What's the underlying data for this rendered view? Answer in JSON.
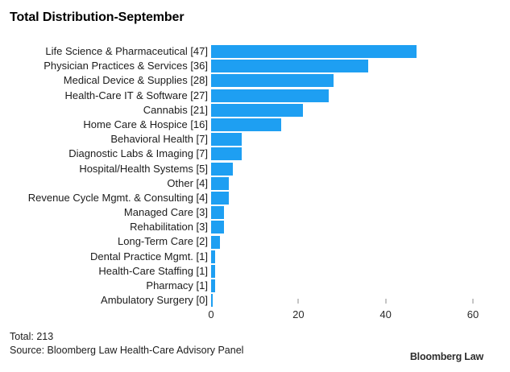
{
  "title": "Total Distribution-September",
  "chart_data": {
    "type": "bar",
    "orientation": "horizontal",
    "title": "Total Distribution-September",
    "categories": [
      "Life Science & Pharmaceutical",
      "Physician Practices & Services",
      "Medical Device & Supplies",
      "Health-Care IT & Software",
      "Cannabis",
      "Home Care & Hospice",
      "Behavioral Health",
      "Diagnostic Labs & Imaging",
      "Hospital/Health Systems",
      "Other",
      "Revenue Cycle Mgmt. & Consulting",
      "Managed Care",
      "Rehabilitation",
      "Long-Term Care",
      "Dental Practice Mgmt.",
      "Health-Care Staffing",
      "Pharmacy",
      "Ambulatory Surgery"
    ],
    "values": [
      47,
      36,
      28,
      27,
      21,
      16,
      7,
      7,
      5,
      4,
      4,
      3,
      3,
      2,
      1,
      1,
      1,
      0
    ],
    "label_suffix_format": "value shown in square brackets after category name",
    "total": 213,
    "xlim": [
      0,
      60
    ],
    "xticks": [
      0,
      20,
      40,
      60
    ],
    "grid": false,
    "legend": false,
    "bar_color": "#1E9FF2"
  },
  "footer": {
    "total_label": "Total: 213",
    "source_label": "Source: Bloomberg Law Health-Care Advisory Panel",
    "brand": "Bloomberg Law"
  }
}
